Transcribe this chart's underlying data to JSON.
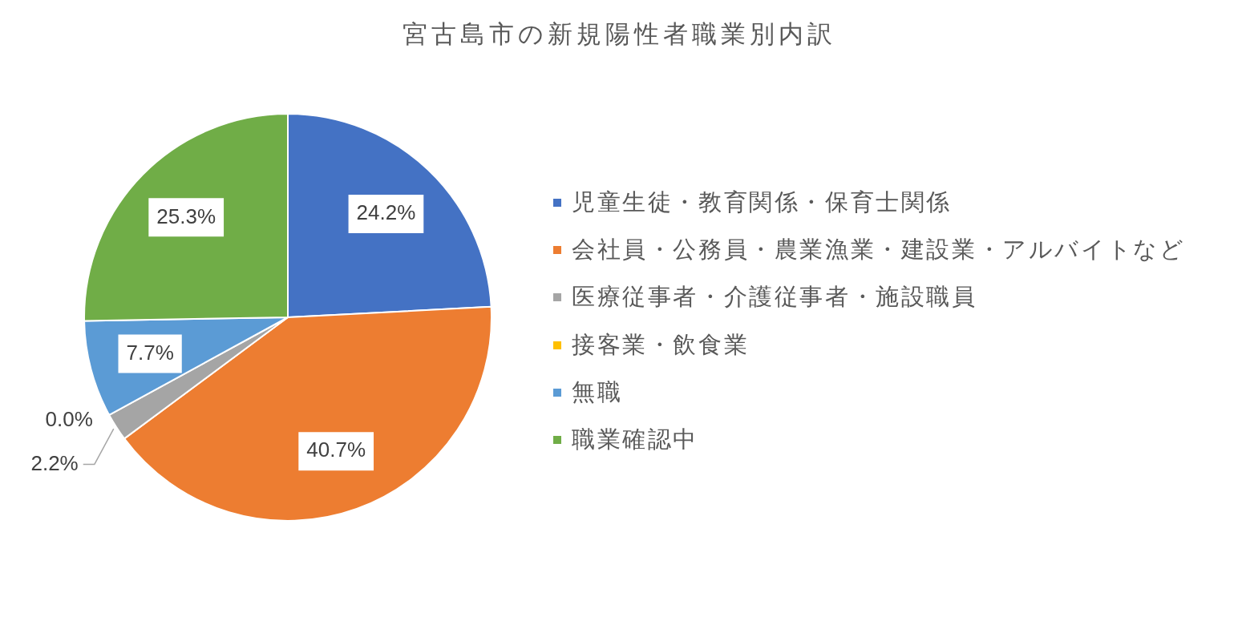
{
  "chart_data": {
    "type": "pie",
    "title": "宮古島市の新規陽性者職業別内訳",
    "categories": [
      "児童生徒・教育関係・保育士関係",
      "会社員・公務員・農業漁業・建設業・アルバイトなど",
      "医療従事者・介護従事者・施設職員",
      "接客業・飲食業",
      "無職",
      "職業確認中"
    ],
    "values": [
      24.2,
      40.7,
      2.2,
      0.0,
      7.7,
      25.3
    ],
    "colors": [
      "#4472c4",
      "#ed7d31",
      "#a5a5a5",
      "#ffc000",
      "#5b9bd5",
      "#70ad47"
    ],
    "value_labels": [
      "24.2%",
      "40.7%",
      "2.2%",
      "0.0%",
      "7.7%",
      "25.3%"
    ],
    "legend": "right"
  }
}
